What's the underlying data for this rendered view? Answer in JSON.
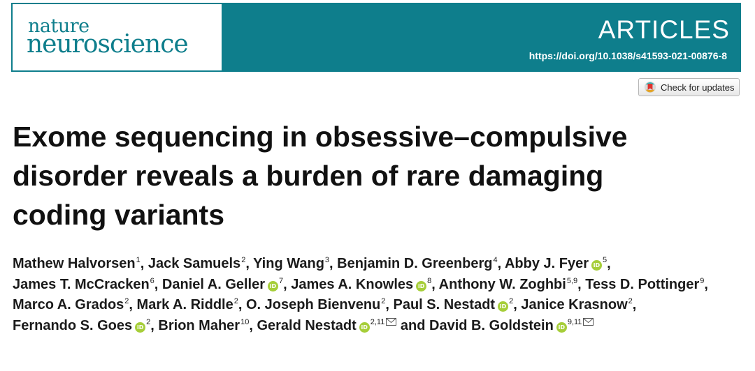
{
  "journal": {
    "name_line1": "nature",
    "name_line2": "neuroscience",
    "section": "ARTICLES",
    "doi": "https://doi.org/10.1038/s41593-021-00876-8",
    "brand_color": "#0e7e8c"
  },
  "check_updates": {
    "label": "Check for updates",
    "icon": "crossmark-icon"
  },
  "article": {
    "title": "Exome sequencing in obsessive–compulsive\ndisorder reveals a burden of rare damaging\ncoding variants"
  },
  "authors": [
    {
      "name": "Mathew Halvorsen",
      "orcid": false,
      "aff": "1",
      "email": false
    },
    {
      "name": "Jack Samuels",
      "orcid": false,
      "aff": "2",
      "email": false
    },
    {
      "name": "Ying Wang",
      "orcid": false,
      "aff": "3",
      "email": false
    },
    {
      "name": "Benjamin D. Greenberg",
      "orcid": false,
      "aff": "4",
      "email": false
    },
    {
      "name": "Abby J. Fyer",
      "orcid": true,
      "aff": "5",
      "email": false
    },
    {
      "name": "James T. McCracken",
      "orcid": false,
      "aff": "6",
      "email": false
    },
    {
      "name": "Daniel A. Geller",
      "orcid": true,
      "aff": "7",
      "email": false
    },
    {
      "name": "James A. Knowles",
      "orcid": true,
      "aff": "8",
      "email": false
    },
    {
      "name": "Anthony W. Zoghbi",
      "orcid": false,
      "aff": "5,9",
      "email": false
    },
    {
      "name": "Tess D. Pottinger",
      "orcid": false,
      "aff": "9",
      "email": false
    },
    {
      "name": "Marco A. Grados",
      "orcid": false,
      "aff": "2",
      "email": false
    },
    {
      "name": "Mark A. Riddle",
      "orcid": false,
      "aff": "2",
      "email": false
    },
    {
      "name": "O. Joseph Bienvenu",
      "orcid": false,
      "aff": "2",
      "email": false
    },
    {
      "name": "Paul S. Nestadt",
      "orcid": true,
      "aff": "2",
      "email": false
    },
    {
      "name": "Janice Krasnow",
      "orcid": false,
      "aff": "2",
      "email": false
    },
    {
      "name": "Fernando S. Goes",
      "orcid": true,
      "aff": "2",
      "email": false
    },
    {
      "name": "Brion Maher",
      "orcid": false,
      "aff": "10",
      "email": false
    },
    {
      "name": "Gerald Nestadt",
      "orcid": true,
      "aff": "2,11",
      "email": true
    },
    {
      "name": "David B. Goldstein",
      "orcid": true,
      "aff": "9,11",
      "email": true
    }
  ],
  "authors_conjunction": "and",
  "orcid_badge": "iD"
}
